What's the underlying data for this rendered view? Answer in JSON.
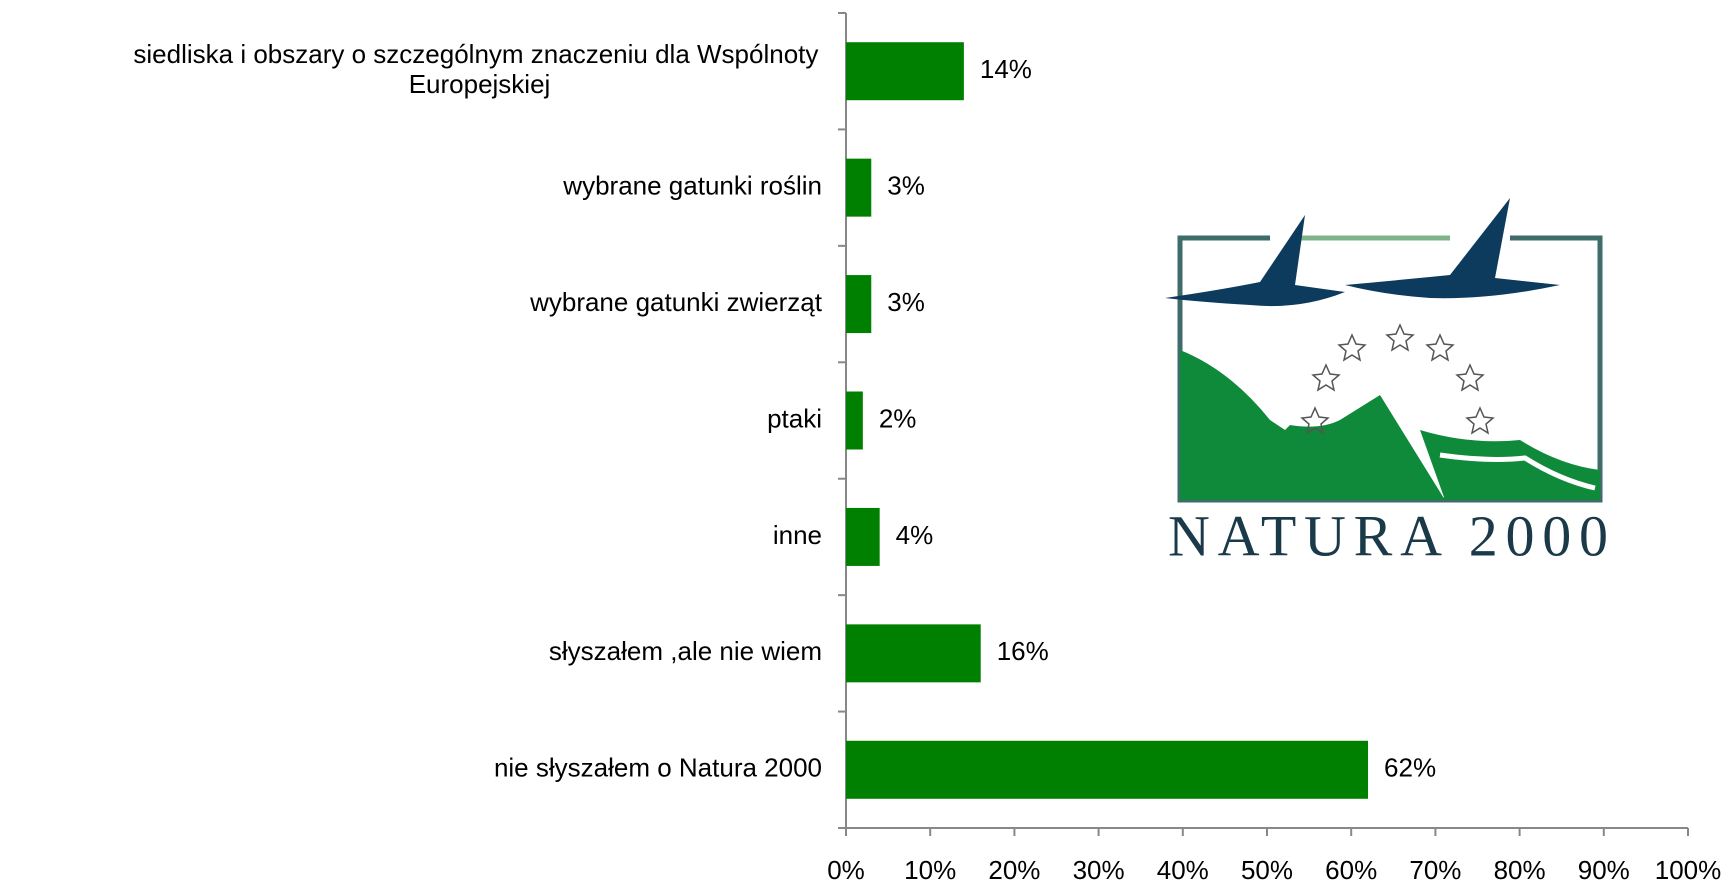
{
  "chart_data": {
    "type": "barh",
    "categories": [
      "siedliska i obszary o szczególnym znaczeniu dla Wspólnoty Europejskiej",
      "wybrane gatunki roślin",
      "wybrane gatunki zwierząt",
      "ptaki",
      "inne",
      "słyszałem ,ale nie wiem",
      "nie słyszałem o Natura 2000"
    ],
    "values": [
      14,
      3,
      3,
      2,
      4,
      16,
      62
    ],
    "value_labels": [
      "14%",
      "3%",
      "3%",
      "2%",
      "4%",
      "16%",
      "62%"
    ],
    "color": "#008000",
    "xlim": [
      0,
      100
    ],
    "xticks": [
      {
        "value": 0,
        "label": "0%"
      },
      {
        "value": 10,
        "label": "10%"
      },
      {
        "value": 20,
        "label": "20%"
      },
      {
        "value": 30,
        "label": "30%"
      },
      {
        "value": 40,
        "label": "40%"
      },
      {
        "value": 50,
        "label": "50%"
      },
      {
        "value": 60,
        "label": "60%"
      },
      {
        "value": 70,
        "label": "70%"
      },
      {
        "value": 80,
        "label": "80%"
      },
      {
        "value": 90,
        "label": "90%"
      },
      {
        "value": 100,
        "label": "100%"
      }
    ],
    "grid": false
  },
  "logo": {
    "text": "NATURA 2000"
  }
}
